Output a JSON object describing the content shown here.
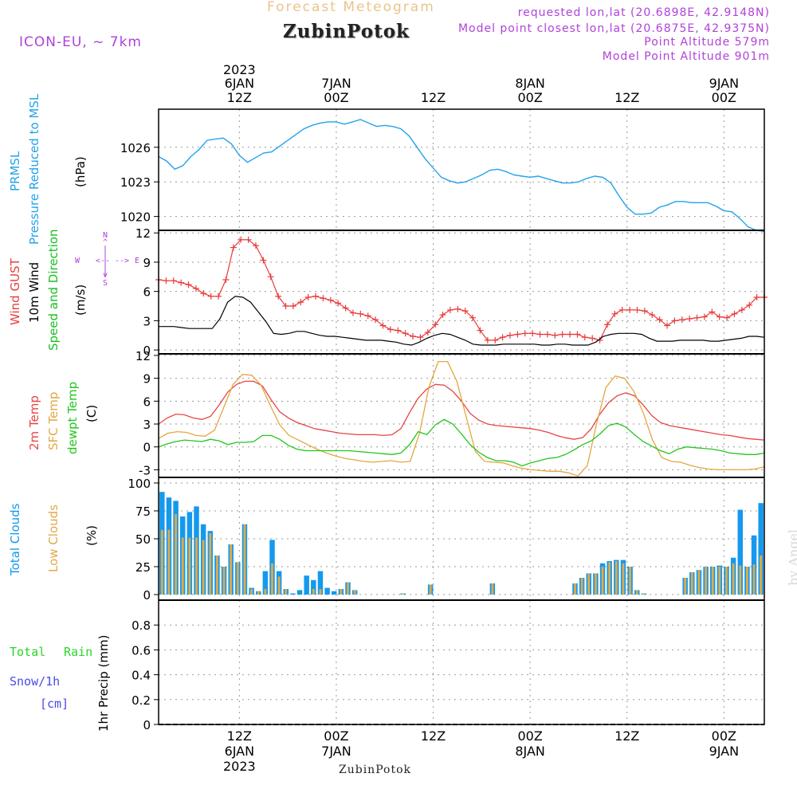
{
  "header": {
    "supertitle": "Forecast Meteogram",
    "location": "ZubinPotok",
    "model": "ICON-EU, ~ 7km",
    "requested": "requested lon,lat (20.6898E, 42.9148N)",
    "closest": "Model point closest lon,lat (20.6875E, 42.9375N)",
    "point_altitude": "Point Altitude 579m",
    "model_altitude": "Model Point Altitude 901m",
    "footer_location": "ZubinPotok",
    "watermark": "by Angel"
  },
  "colors": {
    "pressure": "#22a3ea",
    "gust": "#e83c3c",
    "wind10m": "#000000",
    "wind_dir": "#19c01f",
    "temp2m": "#e84444",
    "sfc_temp": "#e4a640",
    "dewpt": "#22c61c",
    "total_clouds": "#1499ee",
    "low_clouds": "#e0aa48",
    "rain": "#2ad42a",
    "snow": "#4a4ae8",
    "title_purple": "#b042d8",
    "supertitle_gold": "#eac48a"
  },
  "top_axis": [
    {
      "line1": "2023",
      "line2": "6JAN",
      "line3": "12Z"
    },
    {
      "line1": "",
      "line2": "7JAN",
      "line3": "00Z"
    },
    {
      "line1": "",
      "line2": "",
      "line3": "12Z"
    },
    {
      "line1": "",
      "line2": "8JAN",
      "line3": "00Z"
    },
    {
      "line1": "",
      "line2": "",
      "line3": "12Z"
    },
    {
      "line1": "",
      "line2": "9JAN",
      "line3": "00Z"
    }
  ],
  "bottom_axis": [
    {
      "line1": "12Z",
      "line2": "6JAN",
      "line3": "2023"
    },
    {
      "line1": "00Z",
      "line2": "7JAN",
      "line3": ""
    },
    {
      "line1": "12Z",
      "line2": "",
      "line3": ""
    },
    {
      "line1": "00Z",
      "line2": "8JAN",
      "line3": ""
    },
    {
      "line1": "12Z",
      "line2": "",
      "line3": ""
    },
    {
      "line1": "00Z",
      "line2": "9JAN",
      "line3": ""
    }
  ],
  "chart_data": [
    {
      "type": "line",
      "panel": "pressure",
      "ylabel_lines": [
        "PRMSL",
        "Pressure Reduced to MSL"
      ],
      "unit": "(hPa)",
      "yticks": [
        1020,
        1023,
        1026
      ],
      "ylim": [
        1018.8,
        1029.3
      ],
      "x_hours": {
        "start": 0,
        "end": 75
      },
      "series": [
        {
          "name": "PRMSL",
          "values": [
            1025.2,
            1024.8,
            1024.1,
            1024.4,
            1025.2,
            1025.8,
            1026.6,
            1026.7,
            1026.8,
            1026.3,
            1025.3,
            1024.7,
            1025.1,
            1025.5,
            1025.6,
            1026.1,
            1026.6,
            1027.1,
            1027.6,
            1027.9,
            1028.1,
            1028.2,
            1028.2,
            1028.0,
            1028.2,
            1028.4,
            1028.1,
            1027.8,
            1027.9,
            1027.8,
            1027.6,
            1027.0,
            1026.0,
            1025.0,
            1024.2,
            1023.4,
            1023.1,
            1022.9,
            1023.0,
            1023.3,
            1023.6,
            1024.0,
            1024.1,
            1023.9,
            1023.6,
            1023.5,
            1023.4,
            1023.5,
            1023.3,
            1023.1,
            1022.9,
            1022.9,
            1023.0,
            1023.3,
            1023.5,
            1023.4,
            1022.9,
            1021.8,
            1020.8,
            1020.2,
            1020.2,
            1020.3,
            1020.8,
            1021.0,
            1021.3,
            1021.3,
            1021.2,
            1021.2,
            1021.2,
            1020.9,
            1020.5,
            1020.4,
            1019.8,
            1019.1,
            1018.8,
            1018.7
          ]
        }
      ]
    },
    {
      "type": "line",
      "panel": "wind",
      "ylabel_lines": [
        "Wind GUST",
        "10m Wind",
        "Speed and Direction"
      ],
      "unit": "(m/s)",
      "compass": {
        "north": "N",
        "south": "S",
        "west": "W",
        "east": "E"
      },
      "yticks": [
        0,
        3,
        6,
        9,
        12
      ],
      "ylim": [
        -0.4,
        12.1
      ],
      "series": [
        {
          "name": "Wind GUST",
          "values": [
            7.2,
            7.1,
            7.1,
            6.9,
            6.7,
            6.3,
            5.8,
            5.5,
            5.5,
            7.2,
            10.5,
            11.3,
            11.3,
            10.7,
            9.2,
            7.5,
            5.5,
            4.5,
            4.5,
            4.9,
            5.4,
            5.5,
            5.3,
            5.1,
            4.8,
            4.3,
            3.8,
            3.7,
            3.5,
            3.1,
            2.5,
            2.1,
            2.0,
            1.7,
            1.4,
            1.3,
            1.8,
            2.6,
            3.6,
            4.1,
            4.2,
            4.0,
            3.3,
            2.0,
            1.0,
            1.0,
            1.3,
            1.5,
            1.6,
            1.7,
            1.7,
            1.6,
            1.6,
            1.5,
            1.6,
            1.6,
            1.6,
            1.3,
            1.2,
            1.0,
            2.6,
            3.7,
            4.1,
            4.1,
            4.1,
            4.0,
            3.6,
            3.1,
            2.5,
            3.0,
            3.1,
            3.2,
            3.3,
            3.4,
            3.9,
            3.4,
            3.3,
            3.7,
            4.1,
            4.6,
            5.4,
            5.4
          ]
        },
        {
          "name": "10m Wind",
          "values": [
            2.4,
            2.4,
            2.4,
            2.3,
            2.2,
            2.2,
            2.2,
            2.2,
            3.2,
            4.9,
            5.5,
            5.4,
            4.9,
            3.9,
            2.9,
            1.7,
            1.6,
            1.7,
            1.9,
            1.9,
            1.7,
            1.5,
            1.4,
            1.4,
            1.3,
            1.2,
            1.1,
            1.0,
            1.0,
            1.0,
            0.9,
            0.8,
            0.6,
            0.5,
            0.8,
            1.2,
            1.5,
            1.7,
            1.6,
            1.3,
            1.0,
            0.6,
            0.5,
            0.5,
            0.5,
            0.6,
            0.6,
            0.6,
            0.6,
            0.6,
            0.5,
            0.5,
            0.6,
            0.6,
            0.5,
            0.5,
            0.5,
            0.8,
            1.4,
            1.6,
            1.7,
            1.7,
            1.7,
            1.6,
            1.2,
            0.9,
            0.9,
            0.9,
            1.0,
            1.0,
            1.0,
            1.0,
            0.9,
            0.9,
            1.0,
            1.1,
            1.2,
            1.4,
            1.4,
            1.3
          ]
        },
        {
          "name": "Speed and Direction",
          "values": []
        }
      ]
    },
    {
      "type": "line",
      "panel": "temperature",
      "ylabel_lines": [
        "2m Temp",
        "SFC Temp",
        "dewpt Temp"
      ],
      "unit": "(C)",
      "yticks": [
        -3,
        0,
        3,
        6,
        9,
        12
      ],
      "ylim": [
        -4.0,
        12.2
      ],
      "series": [
        {
          "name": "2m Temp",
          "values": [
            3.0,
            3.8,
            4.3,
            4.2,
            3.8,
            3.6,
            4.0,
            5.5,
            7.2,
            8.2,
            8.6,
            8.6,
            8.0,
            6.2,
            4.6,
            3.8,
            3.2,
            2.8,
            2.4,
            2.2,
            2.0,
            1.8,
            1.7,
            1.6,
            1.6,
            1.6,
            1.5,
            1.6,
            2.4,
            4.5,
            6.4,
            7.6,
            8.2,
            8.1,
            7.3,
            6.0,
            4.4,
            3.5,
            3.0,
            2.8,
            2.7,
            2.6,
            2.5,
            2.4,
            2.2,
            1.9,
            1.5,
            1.2,
            1.0,
            1.2,
            2.4,
            4.3,
            5.8,
            6.7,
            7.1,
            6.7,
            5.5,
            4.1,
            3.2,
            2.8,
            2.6,
            2.4,
            2.2,
            2.0,
            1.8,
            1.6,
            1.5,
            1.3,
            1.1,
            1.0,
            0.9
          ]
        },
        {
          "name": "SFC Temp",
          "values": [
            1.1,
            1.8,
            2.0,
            1.9,
            1.5,
            1.4,
            2.2,
            5.2,
            8.2,
            9.5,
            9.4,
            8.1,
            5.4,
            2.9,
            1.5,
            0.9,
            0.3,
            -0.3,
            -0.8,
            -1.2,
            -1.5,
            -1.7,
            -1.9,
            -2.0,
            -1.9,
            -1.8,
            -2.0,
            -1.9,
            1.8,
            7.8,
            11.2,
            11.2,
            8.6,
            4.0,
            -0.6,
            -1.9,
            -2.0,
            -2.1,
            -2.5,
            -2.8,
            -3.0,
            -3.1,
            -3.2,
            -3.2,
            -3.4,
            -3.8,
            -2.5,
            3.0,
            7.8,
            9.3,
            9.0,
            7.3,
            4.5,
            0.9,
            -1.4,
            -1.9,
            -2.0,
            -2.4,
            -2.7,
            -2.9,
            -3.0,
            -3.0,
            -3.0,
            -3.0,
            -2.9,
            -2.6
          ]
        },
        {
          "name": "dewpt Temp",
          "values": [
            0.0,
            0.4,
            0.7,
            0.9,
            0.8,
            0.7,
            1.0,
            0.8,
            0.3,
            0.6,
            0.6,
            0.7,
            1.5,
            1.5,
            1.0,
            0.2,
            -0.3,
            -0.5,
            -0.5,
            -0.5,
            -0.5,
            -0.5,
            -0.5,
            -0.6,
            -0.7,
            -0.8,
            -0.9,
            -1.0,
            -0.8,
            0.3,
            2.0,
            1.6,
            2.9,
            3.6,
            3.0,
            1.7,
            0.3,
            -0.7,
            -1.4,
            -1.8,
            -1.8,
            -2.0,
            -2.5,
            -2.1,
            -1.8,
            -1.5,
            -1.4,
            -1.0,
            -0.4,
            0.3,
            0.8,
            1.7,
            2.8,
            3.1,
            2.6,
            1.6,
            0.7,
            0.1,
            -0.5,
            -0.9,
            -0.3,
            0.0,
            -0.1,
            -0.2,
            -0.3,
            -0.5,
            -0.8,
            -0.9,
            -1.0,
            -1.0,
            -0.8
          ]
        }
      ]
    },
    {
      "type": "bar",
      "panel": "clouds",
      "ylabel_lines": [
        "Total Clouds",
        "Low Clouds"
      ],
      "unit": "(%)",
      "yticks": [
        0,
        25,
        50,
        75,
        100
      ],
      "ylim": [
        -5,
        105
      ],
      "series": [
        {
          "name": "Total Clouds",
          "values": [
            92,
            87,
            84,
            70,
            74,
            79,
            63,
            57,
            35,
            25,
            45,
            29,
            63,
            6,
            3,
            21,
            49,
            21,
            5,
            1,
            4,
            17,
            13,
            21,
            6,
            3,
            5,
            11,
            4,
            0,
            0,
            0,
            0,
            0,
            0,
            1,
            0,
            0,
            0,
            9,
            0,
            0,
            0,
            0,
            0,
            0,
            0,
            0,
            10,
            0,
            0,
            0,
            0,
            0,
            0,
            0,
            0,
            0,
            0,
            0,
            10,
            15,
            19,
            19,
            28,
            30,
            31,
            31,
            25,
            4,
            1,
            0,
            0,
            0,
            0,
            0,
            15,
            20,
            22,
            25,
            25,
            26,
            25,
            33,
            76,
            25,
            53,
            82
          ]
        },
        {
          "name": "Low Clouds",
          "values": [
            58,
            58,
            72,
            51,
            51,
            51,
            49,
            55,
            35,
            25,
            45,
            29,
            63,
            5,
            3,
            5,
            28,
            16,
            5,
            0,
            0,
            0,
            5,
            5,
            0,
            0,
            5,
            11,
            4,
            0,
            0,
            0,
            0,
            0,
            0,
            1,
            0,
            0,
            0,
            9,
            0,
            0,
            0,
            0,
            0,
            0,
            0,
            0,
            10,
            0,
            0,
            0,
            0,
            0,
            0,
            0,
            0,
            0,
            0,
            0,
            10,
            15,
            19,
            19,
            25,
            29,
            30,
            28,
            25,
            4,
            1,
            0,
            0,
            0,
            0,
            0,
            15,
            20,
            22,
            25,
            25,
            25,
            25,
            28,
            26,
            25,
            27,
            35
          ]
        }
      ]
    },
    {
      "type": "bar",
      "panel": "precip",
      "ylabel_lines": [
        "1hr Precip (mm)"
      ],
      "legend": [
        "Total",
        "Rain",
        "Snow/1h",
        "[cm]"
      ],
      "yticks": [
        0,
        0.2,
        0.4,
        0.6,
        0.8
      ],
      "ylim": [
        0,
        1.0
      ],
      "series": [
        {
          "name": "Total",
          "values": []
        },
        {
          "name": "Rain",
          "values": []
        },
        {
          "name": "Snow/1h",
          "values": []
        }
      ]
    }
  ]
}
